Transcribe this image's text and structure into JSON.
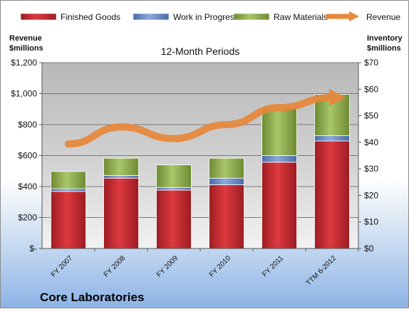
{
  "chart_data": {
    "type": "bar",
    "subtype": "stacked-bar-with-line",
    "title": "12-Month Periods",
    "company": "Core Laboratories",
    "categories": [
      "FY 2007",
      "FY 2008",
      "FY 2009",
      "FY 2010",
      "FY 2011",
      "TTM 6-2012"
    ],
    "left_axis": {
      "title_lines": [
        "Revenue",
        "$millions"
      ],
      "ticks": [
        "$-",
        "$200",
        "$400",
        "$600",
        "$800",
        "$1,000",
        "$1,200"
      ],
      "ylim": [
        0,
        1200
      ]
    },
    "right_axis": {
      "title_lines": [
        "Inventory",
        "$millions"
      ],
      "ticks": [
        "$0",
        "$10",
        "$20",
        "$30",
        "$40",
        "$50",
        "$60",
        "$70"
      ],
      "ylim": [
        0,
        70
      ]
    },
    "series": [
      {
        "name": "Finished Goods",
        "axis": "right",
        "kind": "bar",
        "color": "#c0272d",
        "values": [
          21.5,
          26.5,
          22.0,
          24.0,
          32.5,
          40.5
        ]
      },
      {
        "name": "Work in Progress",
        "axis": "right",
        "kind": "bar",
        "color": "#5b7fbd",
        "values": [
          1.0,
          1.0,
          1.0,
          2.5,
          2.5,
          2.0
        ]
      },
      {
        "name": "Raw Materials",
        "axis": "right",
        "kind": "bar",
        "color": "#8aa84a",
        "values": [
          6.5,
          6.5,
          8.5,
          7.5,
          18.0,
          15.5
        ]
      },
      {
        "name": "Revenue",
        "axis": "left",
        "kind": "line",
        "color": "#e8873a",
        "values": [
          675,
          785,
          710,
          800,
          910,
          975
        ]
      }
    ],
    "grid": true,
    "legend": "top"
  }
}
